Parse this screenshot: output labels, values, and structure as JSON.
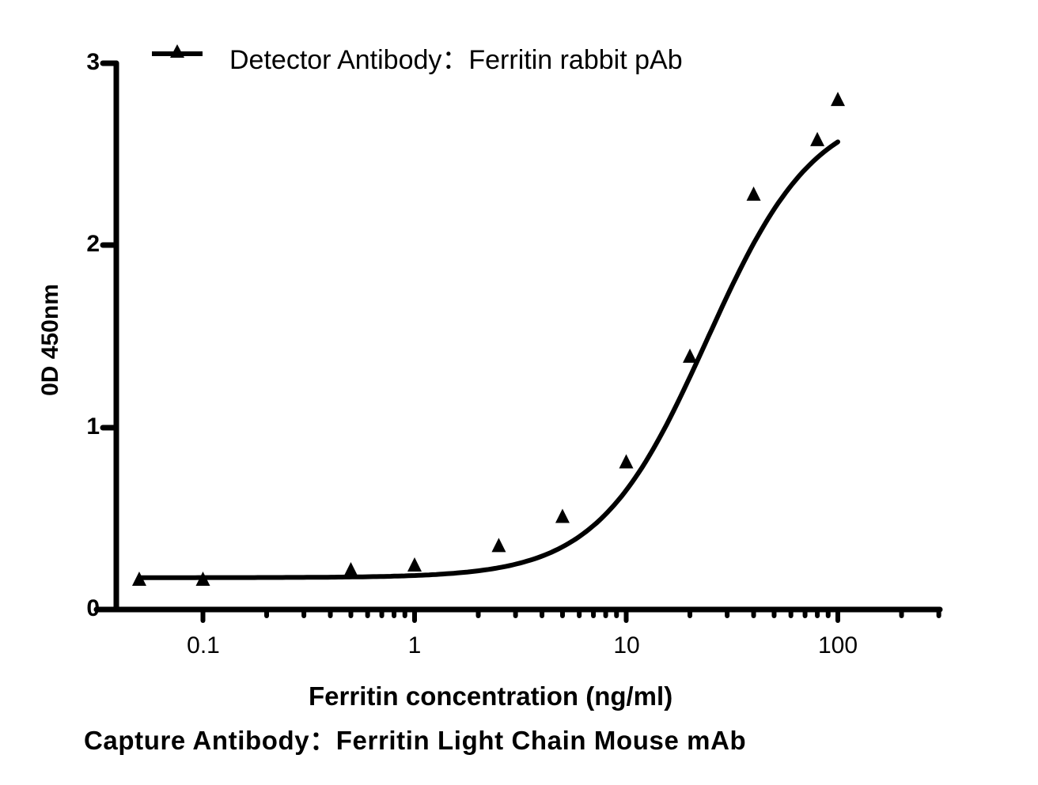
{
  "chart_data": {
    "type": "line",
    "title": "",
    "xlabel": "Ferritin concentration (ng/ml)",
    "ylabel": "0D 450nm",
    "subtitle": "Capture Antibody：Ferritin Light Chain Mouse mAb",
    "x_scale": "log",
    "xlim": [
      0.045,
      300
    ],
    "ylim": [
      0,
      3
    ],
    "x_ticks": [
      "0.1",
      "1",
      "10",
      "100"
    ],
    "y_ticks": [
      "0",
      "1",
      "2",
      "3"
    ],
    "grid": false,
    "legend_position": "top",
    "series": [
      {
        "name": "Detector Antibody：Ferritin rabbit pAb",
        "marker": "triangle",
        "color": "#000000",
        "x": [
          0.05,
          0.1,
          0.5,
          1,
          2.5,
          5,
          10,
          20,
          40,
          80,
          100
        ],
        "y": [
          0.165,
          0.165,
          0.217,
          0.243,
          0.35,
          0.51,
          0.81,
          1.39,
          2.28,
          2.58,
          2.8
        ],
        "fit": "sigmoidal (4PL) curve"
      }
    ]
  },
  "legend": {
    "label": "Detector Antibody：Ferritin rabbit pAb"
  },
  "axes": {
    "y_title": "0D 450nm",
    "x_title": "Ferritin concentration (ng/ml)",
    "y_ticks": [
      "0",
      "1",
      "2",
      "3"
    ],
    "x_ticks": [
      "0.1",
      "1",
      "10",
      "100"
    ]
  },
  "caption": "Capture Antibody：Ferritin Light Chain Mouse mAb"
}
